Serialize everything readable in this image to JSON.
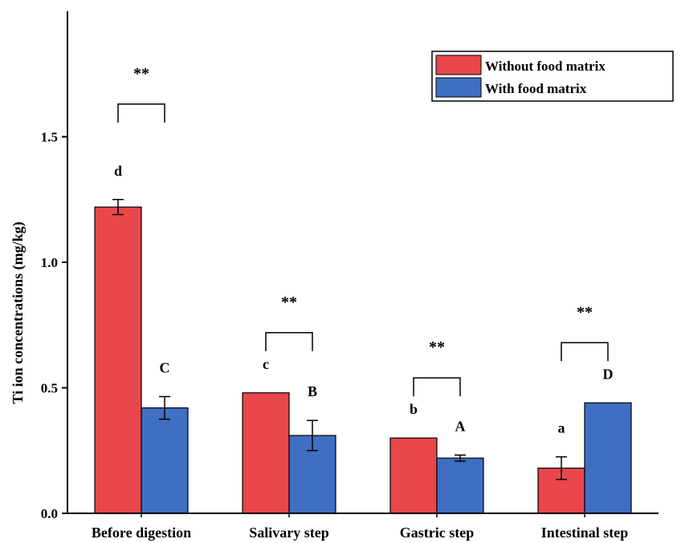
{
  "chart_data": {
    "type": "bar",
    "title": "",
    "xlabel": "",
    "ylabel": "Ti ion concentrations (mg/kg)",
    "ylim": [
      0,
      2.0
    ],
    "yticks": [
      "0.0",
      "0.5",
      "1.0",
      "1.5"
    ],
    "grid": false,
    "legend_position": "top-right",
    "categories": [
      "Before digestion",
      "Salivary step",
      "Gastric step",
      "Intestinal step"
    ],
    "series": [
      {
        "name": "Without food matrix",
        "color": "#e8474b",
        "values": [
          1.22,
          0.48,
          0.3,
          0.18
        ],
        "errors": [
          0.03,
          0.0,
          0.0,
          0.045
        ],
        "letters": [
          "d",
          "c",
          "b",
          "a"
        ]
      },
      {
        "name": "With food matrix",
        "color": "#3f6fc2",
        "values": [
          0.42,
          0.31,
          0.22,
          0.44
        ],
        "errors": [
          0.045,
          0.06,
          0.012,
          0.0
        ],
        "letters": [
          "C",
          "B",
          "A",
          "D"
        ]
      }
    ],
    "significance": [
      "**",
      "**",
      "**",
      "**"
    ]
  }
}
